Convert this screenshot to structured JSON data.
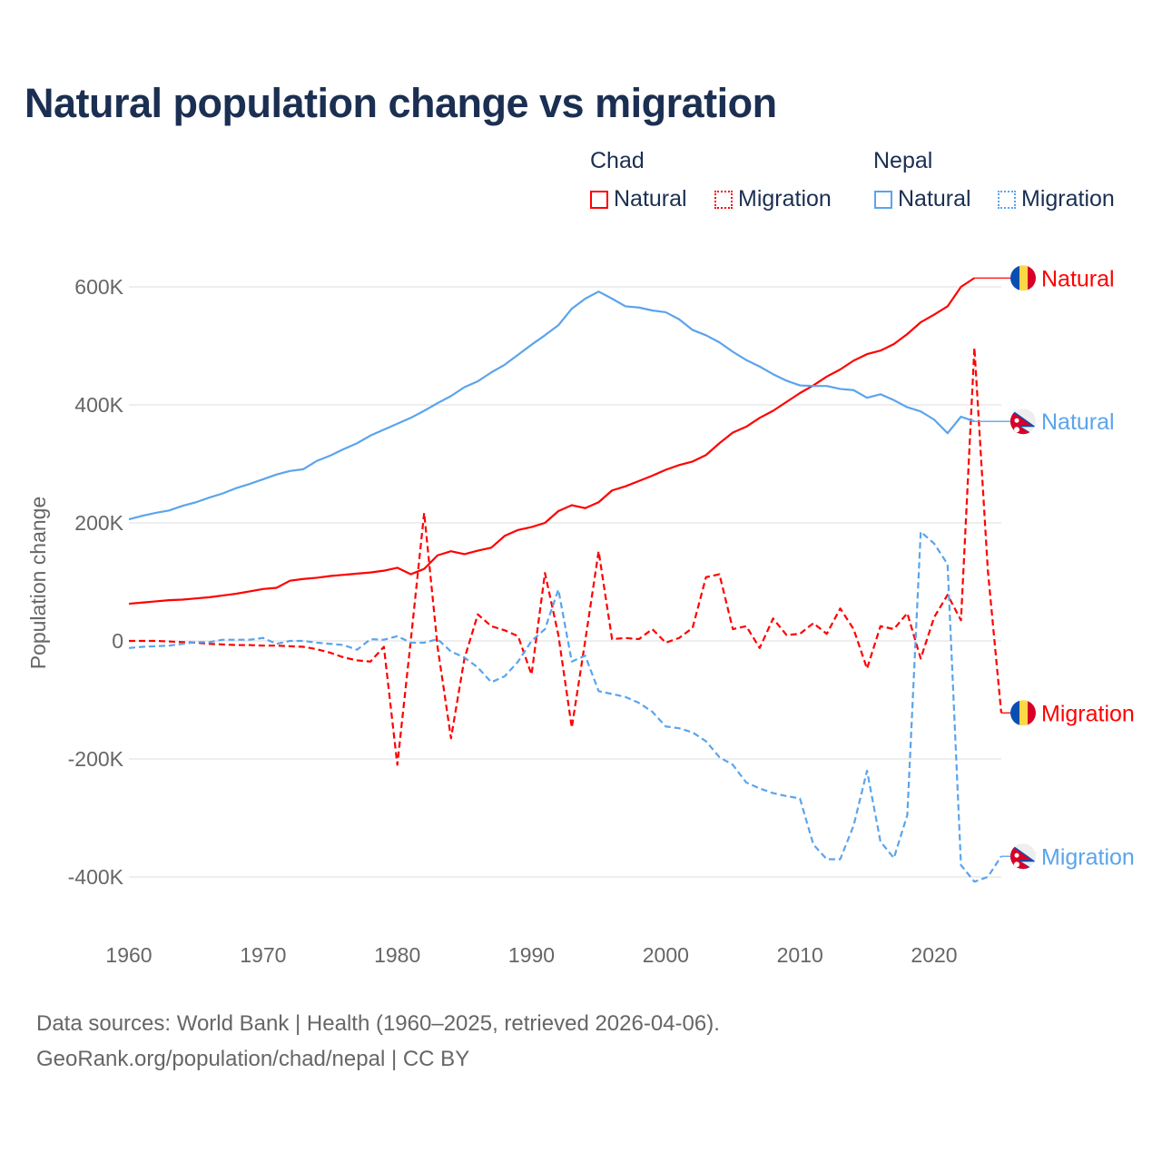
{
  "title": "Natural population change vs migration",
  "legend": {
    "groups": [
      {
        "name": "Chad",
        "items": [
          {
            "label": "Natural",
            "style": "solid"
          },
          {
            "label": "Migration",
            "style": "dotted"
          }
        ],
        "color": "#ff0000"
      },
      {
        "name": "Nepal",
        "items": [
          {
            "label": "Natural",
            "style": "solid"
          },
          {
            "label": "Migration",
            "style": "dotted"
          }
        ],
        "color": "#5ba4ec"
      }
    ]
  },
  "footer": {
    "line1": "Data sources: World Bank | Health (1960–2025, retrieved 2026-04-06).",
    "line2": "GeoRank.org/population/chad/nepal | CC BY"
  },
  "chart_data": {
    "type": "line",
    "title": "Natural population change vs migration",
    "xlabel": "",
    "ylabel": "Population change",
    "xlim": [
      1960,
      2025
    ],
    "ylim": [
      -480000,
      640000
    ],
    "xticks": [
      1960,
      1970,
      1980,
      1990,
      2000,
      2010,
      2020
    ],
    "xtick_labels": [
      "1960",
      "1970",
      "1980",
      "1990",
      "2000",
      "2010",
      "2020"
    ],
    "yticks": [
      600000,
      400000,
      200000,
      0,
      -200000,
      -400000
    ],
    "ytick_labels": [
      "600K",
      "400K",
      "200K",
      "0",
      "-200K",
      "-400K"
    ],
    "grid": true,
    "legend_position": "top-right",
    "x_start": 1960,
    "series": [
      {
        "name": "Chad Natural",
        "country": "Chad",
        "end_label": "Natural",
        "color": "#ff0000",
        "dashed": false,
        "flag": "chad",
        "values": [
          63,
          65,
          67,
          69,
          70,
          72,
          74,
          77,
          80,
          84,
          88,
          90,
          102,
          105,
          107,
          110,
          112,
          114,
          116,
          119,
          124,
          113,
          122,
          145,
          152,
          147,
          153,
          158,
          178,
          188,
          193,
          200,
          220,
          230,
          225,
          235,
          255,
          262,
          271,
          280,
          290,
          298,
          304,
          315,
          335,
          353,
          363,
          378,
          390,
          405,
          420,
          433,
          448,
          460,
          475,
          486,
          492,
          503,
          520,
          540,
          553,
          567,
          600,
          615
        ]
      },
      {
        "name": "Chad Migration",
        "country": "Chad",
        "end_label": "Migration",
        "color": "#ff0000",
        "dashed": true,
        "flag": "chad",
        "values": [
          0,
          0,
          0,
          -1,
          -2,
          -3,
          -5,
          -6,
          -7,
          -7,
          -8,
          -8,
          -9,
          -10,
          -14,
          -20,
          -28,
          -33,
          -35,
          -10,
          -210,
          0,
          217,
          -10,
          -165,
          -30,
          45,
          25,
          18,
          8,
          -57,
          115,
          10,
          -147,
          0,
          152,
          3,
          5,
          3,
          20,
          -3,
          5,
          22,
          108,
          113,
          20,
          25,
          -12,
          38,
          10,
          12,
          30,
          12,
          55,
          20,
          -47,
          25,
          20,
          47,
          -30,
          40,
          78,
          35,
          497,
          120,
          -122
        ]
      },
      {
        "name": "Nepal Natural",
        "country": "Nepal",
        "end_label": "Natural",
        "color": "#5ba4ec",
        "dashed": false,
        "flag": "nepal",
        "values": [
          206,
          212,
          217,
          221,
          229,
          235,
          243,
          250,
          259,
          266,
          274,
          282,
          288,
          291,
          305,
          314,
          325,
          335,
          348,
          358,
          368,
          378,
          390,
          403,
          415,
          430,
          440,
          455,
          468,
          485,
          502,
          518,
          535,
          563,
          580,
          592,
          580,
          567,
          565,
          560,
          557,
          545,
          527,
          518,
          506,
          490,
          476,
          465,
          452,
          441,
          433,
          432,
          432,
          427,
          425,
          412,
          418,
          408,
          396,
          389,
          375,
          352,
          380,
          372
        ]
      },
      {
        "name": "Nepal Migration",
        "country": "Nepal",
        "end_label": "Migration",
        "color": "#5ba4ec",
        "dashed": true,
        "flag": "nepal",
        "values": [
          -12,
          -10,
          -9,
          -8,
          -5,
          -2,
          -2,
          2,
          2,
          2,
          5,
          -5,
          0,
          0,
          -3,
          -5,
          -7,
          -15,
          3,
          2,
          8,
          -3,
          -3,
          3,
          -18,
          -28,
          -45,
          -70,
          -60,
          -35,
          0,
          20,
          87,
          -35,
          -25,
          -85,
          -90,
          -95,
          -105,
          -120,
          -145,
          -148,
          -155,
          -170,
          -197,
          -210,
          -240,
          -250,
          -258,
          -263,
          -267,
          -345,
          -370,
          -370,
          -313,
          -220,
          -340,
          -368,
          -295,
          185,
          165,
          130,
          -380,
          -408,
          -400,
          -365
        ]
      }
    ],
    "value_unit": "thousands"
  }
}
